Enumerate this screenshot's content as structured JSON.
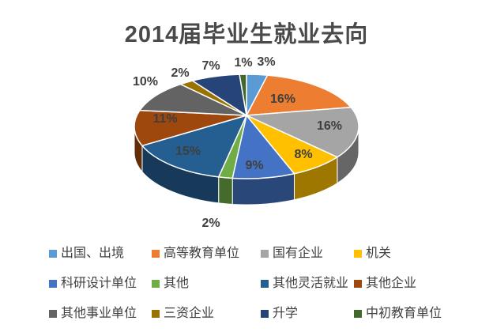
{
  "chart_data": {
    "type": "pie",
    "is_3d": true,
    "title": "2014届毕业生就业去向",
    "unit": "%",
    "legend_position": "bottom",
    "label_format": "percent",
    "series": [
      {
        "name": "出国、出境",
        "value": 3,
        "color": "#5B9BD5"
      },
      {
        "name": "高等教育单位",
        "value": 16,
        "color": "#ED7D31"
      },
      {
        "name": "国有企业",
        "value": 16,
        "color": "#A5A5A5"
      },
      {
        "name": "机关",
        "value": 8,
        "color": "#FFC000"
      },
      {
        "name": "科研设计单位",
        "value": 9,
        "color": "#4472C4"
      },
      {
        "name": "其他",
        "value": 2,
        "color": "#70AD47"
      },
      {
        "name": "其他灵活就业",
        "value": 15,
        "color": "#255E91"
      },
      {
        "name": "其他企业",
        "value": 11,
        "color": "#9E480E"
      },
      {
        "name": "其他事业单位",
        "value": 10,
        "color": "#636363"
      },
      {
        "name": "三资企业",
        "value": 2,
        "color": "#997300"
      },
      {
        "name": "升学",
        "value": 7,
        "color": "#264478"
      },
      {
        "name": "中初教育单位",
        "value": 1,
        "color": "#43682B"
      }
    ]
  }
}
